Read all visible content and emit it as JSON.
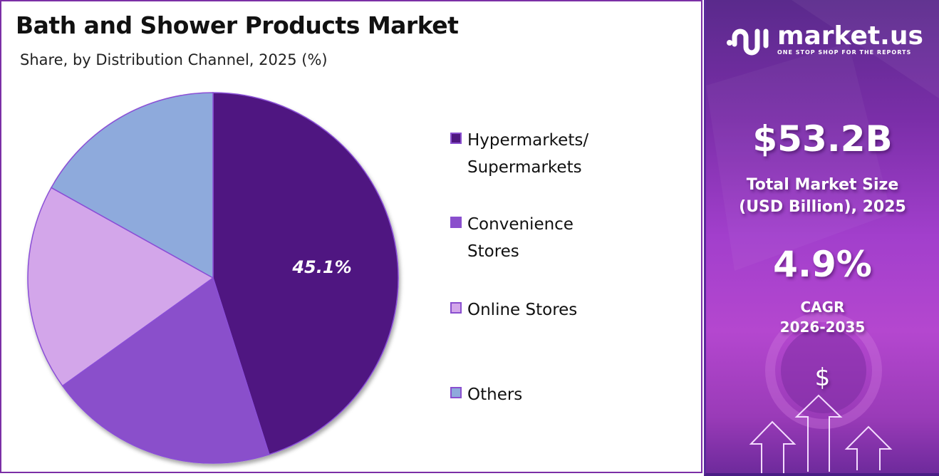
{
  "header": {
    "title": "Bath and Shower Products Market",
    "subtitle": "Share, by Distribution Channel, 2025 (%)"
  },
  "chart_data": {
    "type": "pie",
    "title": "Bath and Shower Products Market",
    "subtitle": "Share, by Distribution Channel, 2025 (%)",
    "categories": [
      "Hypermarkets/ Supermarkets",
      "Convenience Stores",
      "Online Stores",
      "Others"
    ],
    "values": [
      45.1,
      20.0,
      18.0,
      16.9
    ],
    "colors": [
      "#4f1781",
      "#8a4fcb",
      "#d3a6ea",
      "#8eaadc"
    ],
    "data_labels": [
      "45.1%",
      "",
      "",
      ""
    ],
    "legend_position": "right",
    "start_angle_deg": 0,
    "direction": "clockwise"
  },
  "legend": {
    "items": [
      {
        "label": "Hypermarkets/\nSupermarkets",
        "color": "#4f1781"
      },
      {
        "label": "Convenience\nStores",
        "color": "#8a4fcb"
      },
      {
        "label": "Online Stores",
        "color": "#d3a6ea"
      },
      {
        "label": "Others",
        "color": "#8eaadc"
      }
    ]
  },
  "pie_label": "45.1%",
  "sidebar": {
    "brand": "market.us",
    "tagline": "ONE STOP SHOP FOR THE REPORTS",
    "market_size_value": "$53.2B",
    "market_size_label_1": "Total Market Size",
    "market_size_label_2": "(USD Billion), 2025",
    "cagr_value": "4.9%",
    "cagr_label": "CAGR",
    "cagr_period": "2026-2035",
    "dollar_symbol": "$"
  }
}
